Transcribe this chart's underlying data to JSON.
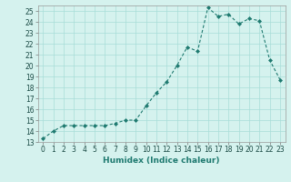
{
  "x": [
    0,
    1,
    2,
    3,
    4,
    5,
    6,
    7,
    8,
    9,
    10,
    11,
    12,
    13,
    14,
    15,
    16,
    17,
    18,
    19,
    20,
    21,
    22,
    23
  ],
  "y": [
    13.3,
    14.0,
    14.5,
    14.5,
    14.5,
    14.5,
    14.5,
    14.7,
    15.0,
    15.0,
    16.3,
    17.5,
    18.5,
    20.0,
    21.7,
    21.3,
    25.3,
    24.5,
    24.7,
    23.8,
    24.3,
    24.1,
    20.5,
    18.7
  ],
  "xlabel": "Humidex (Indice chaleur)",
  "line_color": "#1f7a70",
  "marker_color": "#1f7a70",
  "bg_color": "#d5f2ee",
  "grid_color": "#a8ddd8",
  "ylim": [
    13,
    25.5
  ],
  "xlim": [
    -0.5,
    23.5
  ],
  "yticks": [
    13,
    14,
    15,
    16,
    17,
    18,
    19,
    20,
    21,
    22,
    23,
    24,
    25
  ],
  "xticks": [
    0,
    1,
    2,
    3,
    4,
    5,
    6,
    7,
    8,
    9,
    10,
    11,
    12,
    13,
    14,
    15,
    16,
    17,
    18,
    19,
    20,
    21,
    22,
    23
  ],
  "tick_fontsize": 5.5,
  "xlabel_fontsize": 6.5
}
